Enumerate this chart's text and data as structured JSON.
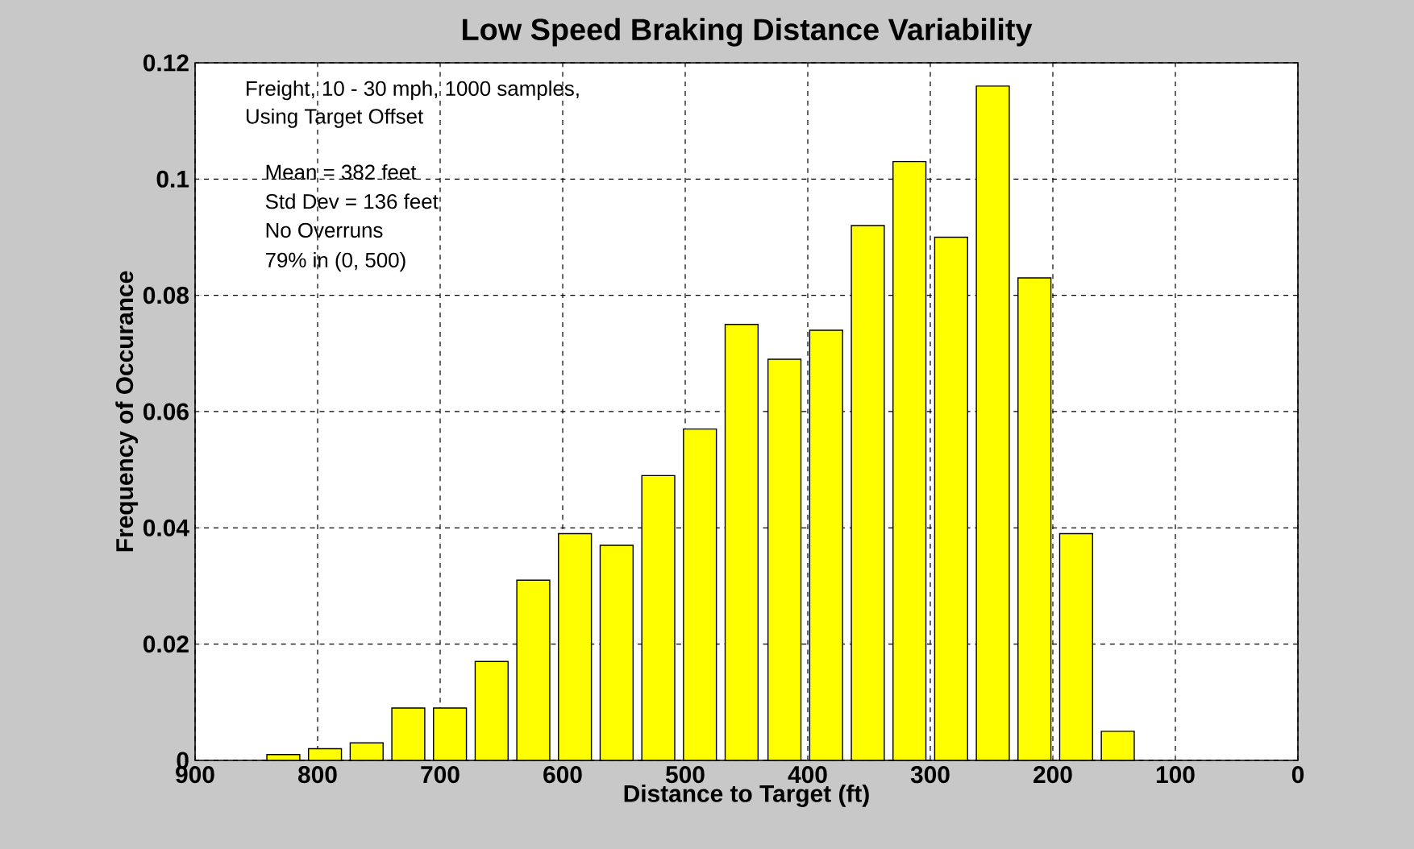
{
  "chart_data": {
    "type": "bar",
    "title": "Low Speed Braking Distance Variability",
    "xlabel": "Distance to Target (ft)",
    "ylabel": "Frequency of Occurance",
    "annotations": [
      "Freight, 10 - 30 mph, 1000 samples,",
      "Using Target Offset",
      "Mean = 382 feet",
      "Std Dev = 136 feet",
      "No Overruns",
      "79% in (0, 500)"
    ],
    "x": [
      828,
      794,
      760,
      726,
      692,
      658,
      624,
      590,
      556,
      522,
      488,
      454,
      419,
      385,
      351,
      317,
      283,
      249,
      215,
      181,
      147
    ],
    "values": [
      0.001,
      0.002,
      0.003,
      0.009,
      0.009,
      0.017,
      0.031,
      0.039,
      0.037,
      0.049,
      0.057,
      0.075,
      0.069,
      0.074,
      0.092,
      0.103,
      0.09,
      0.116,
      0.083,
      0.039,
      0.005
    ],
    "color": "#ffff00",
    "xlim": [
      900,
      0
    ],
    "xticks": [
      900,
      800,
      700,
      600,
      500,
      400,
      300,
      200,
      100,
      0
    ],
    "ylim": [
      0,
      0.12
    ],
    "yticks": [
      0,
      0.02,
      0.04,
      0.06,
      0.08,
      0.1,
      0.12
    ],
    "grid": true
  }
}
